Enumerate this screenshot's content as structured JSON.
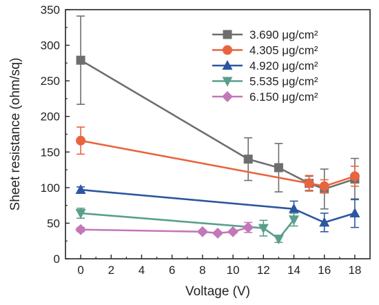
{
  "chart_data": {
    "type": "line",
    "title": "",
    "xlabel": "Voltage (V)",
    "ylabel": "Sheet resistance (ohm/sq)",
    "xlim": [
      -1,
      19
    ],
    "ylim": [
      0,
      350
    ],
    "xticks": [
      0,
      2,
      4,
      6,
      8,
      10,
      12,
      14,
      16,
      18
    ],
    "yticks": [
      0,
      50,
      100,
      150,
      200,
      250,
      300,
      350
    ],
    "legend_position": "top-right",
    "grid": false,
    "series": [
      {
        "name": "3.690 μg/cm²",
        "color": "#6e6e6e",
        "marker": "square",
        "points": [
          {
            "x": 0,
            "y": 279,
            "err": 62
          },
          {
            "x": 11,
            "y": 140,
            "err": 30
          },
          {
            "x": 13,
            "y": 128,
            "err": 34
          },
          {
            "x": 15,
            "y": 106,
            "err": 10
          },
          {
            "x": 16,
            "y": 98,
            "err": 28
          },
          {
            "x": 18,
            "y": 112,
            "err": 29
          }
        ]
      },
      {
        "name": "4.305 μg/cm²",
        "color": "#e8643f",
        "marker": "circle",
        "points": [
          {
            "x": 0,
            "y": 166,
            "err": 19
          },
          {
            "x": 15,
            "y": 106,
            "err": 11
          },
          {
            "x": 16,
            "y": 102,
            "err": 9
          },
          {
            "x": 18,
            "y": 116,
            "err": 14
          }
        ]
      },
      {
        "name": "4.920 μg/cm²",
        "color": "#2d56a0",
        "marker": "triangle-up",
        "points": [
          {
            "x": 0,
            "y": 97,
            "err": 4
          },
          {
            "x": 14,
            "y": 70,
            "err": 11
          },
          {
            "x": 16,
            "y": 51,
            "err": 13
          },
          {
            "x": 18,
            "y": 64,
            "err": 20
          }
        ]
      },
      {
        "name": "5.535 μg/cm²",
        "color": "#5a9e8c",
        "marker": "triangle-down",
        "points": [
          {
            "x": 0,
            "y": 64,
            "err": 7
          },
          {
            "x": 12,
            "y": 43,
            "err": 11
          },
          {
            "x": 13,
            "y": 28,
            "err": 5
          },
          {
            "x": 14,
            "y": 55,
            "err": 9
          }
        ]
      },
      {
        "name": "6.150 μg/cm²",
        "color": "#c277b8",
        "marker": "diamond",
        "points": [
          {
            "x": 0,
            "y": 41,
            "err": 3
          },
          {
            "x": 8,
            "y": 38,
            "err": 2
          },
          {
            "x": 9,
            "y": 36,
            "err": 2
          },
          {
            "x": 10,
            "y": 38,
            "err": 2
          },
          {
            "x": 11,
            "y": 44,
            "err": 7
          }
        ]
      }
    ]
  }
}
